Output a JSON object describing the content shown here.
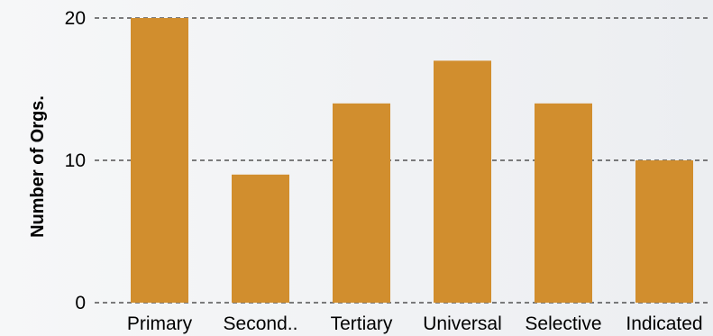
{
  "chart_data": {
    "type": "bar",
    "title": "",
    "xlabel": "",
    "ylabel": "Number of Orgs.",
    "categories": [
      "Primary",
      "Second..",
      "Tertiary",
      "Universal",
      "Selective",
      "Indicated"
    ],
    "values": [
      20,
      9,
      14,
      17,
      14,
      10
    ],
    "ylim": [
      0,
      20
    ],
    "yticks": [
      0,
      10,
      20
    ],
    "bar_color": "#d18e2e",
    "grid": true,
    "grid_style": "dashed",
    "legend": false
  }
}
